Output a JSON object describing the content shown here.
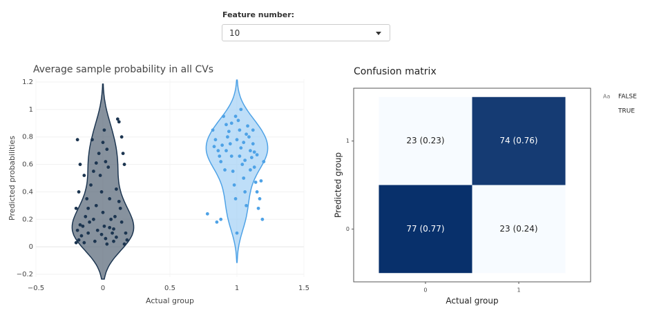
{
  "controls": {
    "label": "Feature number:",
    "value": "10"
  },
  "chart_data": [
    {
      "type": "violin",
      "title": "Average sample probability in all CVs",
      "xlabel": "Actual group",
      "ylabel": "Predicted probabilities",
      "xlim": [
        -0.5,
        1.5
      ],
      "xticks": [
        {
          "value": -0.5,
          "label": "−0.5"
        },
        0,
        0.5,
        1,
        1.5
      ],
      "ylim": [
        -0.22,
        1.22
      ],
      "yticks": [
        {
          "value": -0.2,
          "label": "−0.2"
        },
        0,
        0.2,
        0.4,
        0.6,
        0.8,
        1,
        1.2
      ],
      "grid": true,
      "series": [
        {
          "group": 0,
          "color": "#1c3550",
          "fill": "#5f6e7d",
          "x": [
            -0.19,
            -0.18,
            -0.17,
            -0.2,
            -0.15,
            -0.19,
            -0.18,
            -0.2,
            -0.16,
            -0.12,
            -0.13,
            -0.1,
            -0.11,
            -0.14,
            -0.08,
            -0.07,
            -0.09,
            -0.05,
            -0.04,
            -0.06,
            -0.03,
            -0.02,
            -0.01,
            0.0,
            0.01,
            0.02,
            0.03,
            0.0,
            0.02,
            0.04,
            -0.05,
            0.05,
            0.06,
            0.07,
            0.08,
            0.11,
            0.12,
            0.14,
            0.15,
            0.16,
            0.1,
            0.12,
            0.13,
            0.09,
            0.14,
            0.17,
            0.18,
            0.16,
            -0.14,
            -0.11,
            -0.07,
            0.05,
            0.08,
            -0.01,
            0.1,
            -0.17,
            0.01,
            0.03
          ],
          "values": [
            0.78,
            0.4,
            0.6,
            0.28,
            0.15,
            0.12,
            0.05,
            0.03,
            0.08,
            0.35,
            0.22,
            0.18,
            0.1,
            0.03,
            0.78,
            0.55,
            0.45,
            0.3,
            0.12,
            0.04,
            0.68,
            0.52,
            0.4,
            0.25,
            0.15,
            0.06,
            0.02,
            0.76,
            0.62,
            0.58,
            0.61,
            0.35,
            0.2,
            0.1,
            0.04,
            0.93,
            0.91,
            0.8,
            0.68,
            0.6,
            0.42,
            0.33,
            0.28,
            0.22,
            0.18,
            0.1,
            0.05,
            0.02,
            0.52,
            0.28,
            0.2,
            0.14,
            0.13,
            0.09,
            0.07,
            0.16,
            0.85,
            0.71
          ]
        },
        {
          "group": 1,
          "color": "#4ea2e6",
          "fill": "#a8d3f6",
          "x": [
            0.78,
            0.85,
            0.88,
            0.82,
            0.84,
            0.86,
            0.88,
            0.9,
            0.92,
            0.93,
            0.95,
            0.96,
            0.97,
            0.98,
            0.99,
            1.0,
            1.01,
            1.02,
            1.03,
            1.04,
            1.05,
            1.06,
            1.07,
            1.08,
            1.09,
            1.1,
            1.11,
            1.12,
            1.13,
            1.14,
            1.15,
            1.16,
            1.17,
            1.18,
            1.19,
            1.2,
            0.87,
            0.89,
            0.91,
            0.94,
            1.0,
            1.02,
            1.05,
            1.07,
            1.12,
            1.15,
            0.96,
            0.99,
            1.03,
            0.92,
            1.1,
            0.83,
            1.06,
            1.13
          ],
          "values": [
            0.24,
            0.18,
            0.2,
            0.85,
            0.78,
            0.7,
            0.62,
            0.95,
            0.89,
            0.8,
            0.75,
            0.66,
            0.55,
            0.45,
            0.35,
            0.1,
            0.92,
            0.85,
            0.72,
            0.6,
            0.5,
            0.4,
            0.3,
            0.88,
            0.8,
            0.7,
            0.65,
            0.75,
            0.58,
            0.47,
            0.4,
            0.28,
            0.35,
            0.48,
            0.2,
            0.62,
            0.66,
            0.74,
            0.56,
            0.84,
            0.78,
            0.66,
            0.76,
            0.82,
            0.85,
            0.67,
            0.9,
            0.95,
            1.0,
            0.7,
            0.56,
            0.73,
            0.63,
            0.69
          ]
        }
      ]
    },
    {
      "type": "heatmap",
      "title": "Confusion matrix",
      "xlabel": "Actual group",
      "ylabel": "Predicted group",
      "x": [
        0,
        1
      ],
      "y": [
        0,
        1
      ],
      "xlim": [
        -0.77,
        1.77
      ],
      "ylim": [
        -0.6,
        1.6
      ],
      "xticks": [
        0,
        1
      ],
      "yticks": [
        0,
        1
      ],
      "values": [
        [
          77,
          23
        ],
        [
          23,
          74
        ]
      ],
      "value_labels": [
        [
          "77 (0.77)",
          "23 (0.24)"
        ],
        [
          "23 (0.23)",
          "74 (0.76)"
        ]
      ],
      "colorscale": [
        "#f7fbff",
        "#08306b"
      ],
      "legend_key": "Aa",
      "legend": [
        "FALSE",
        "TRUE"
      ]
    }
  ]
}
